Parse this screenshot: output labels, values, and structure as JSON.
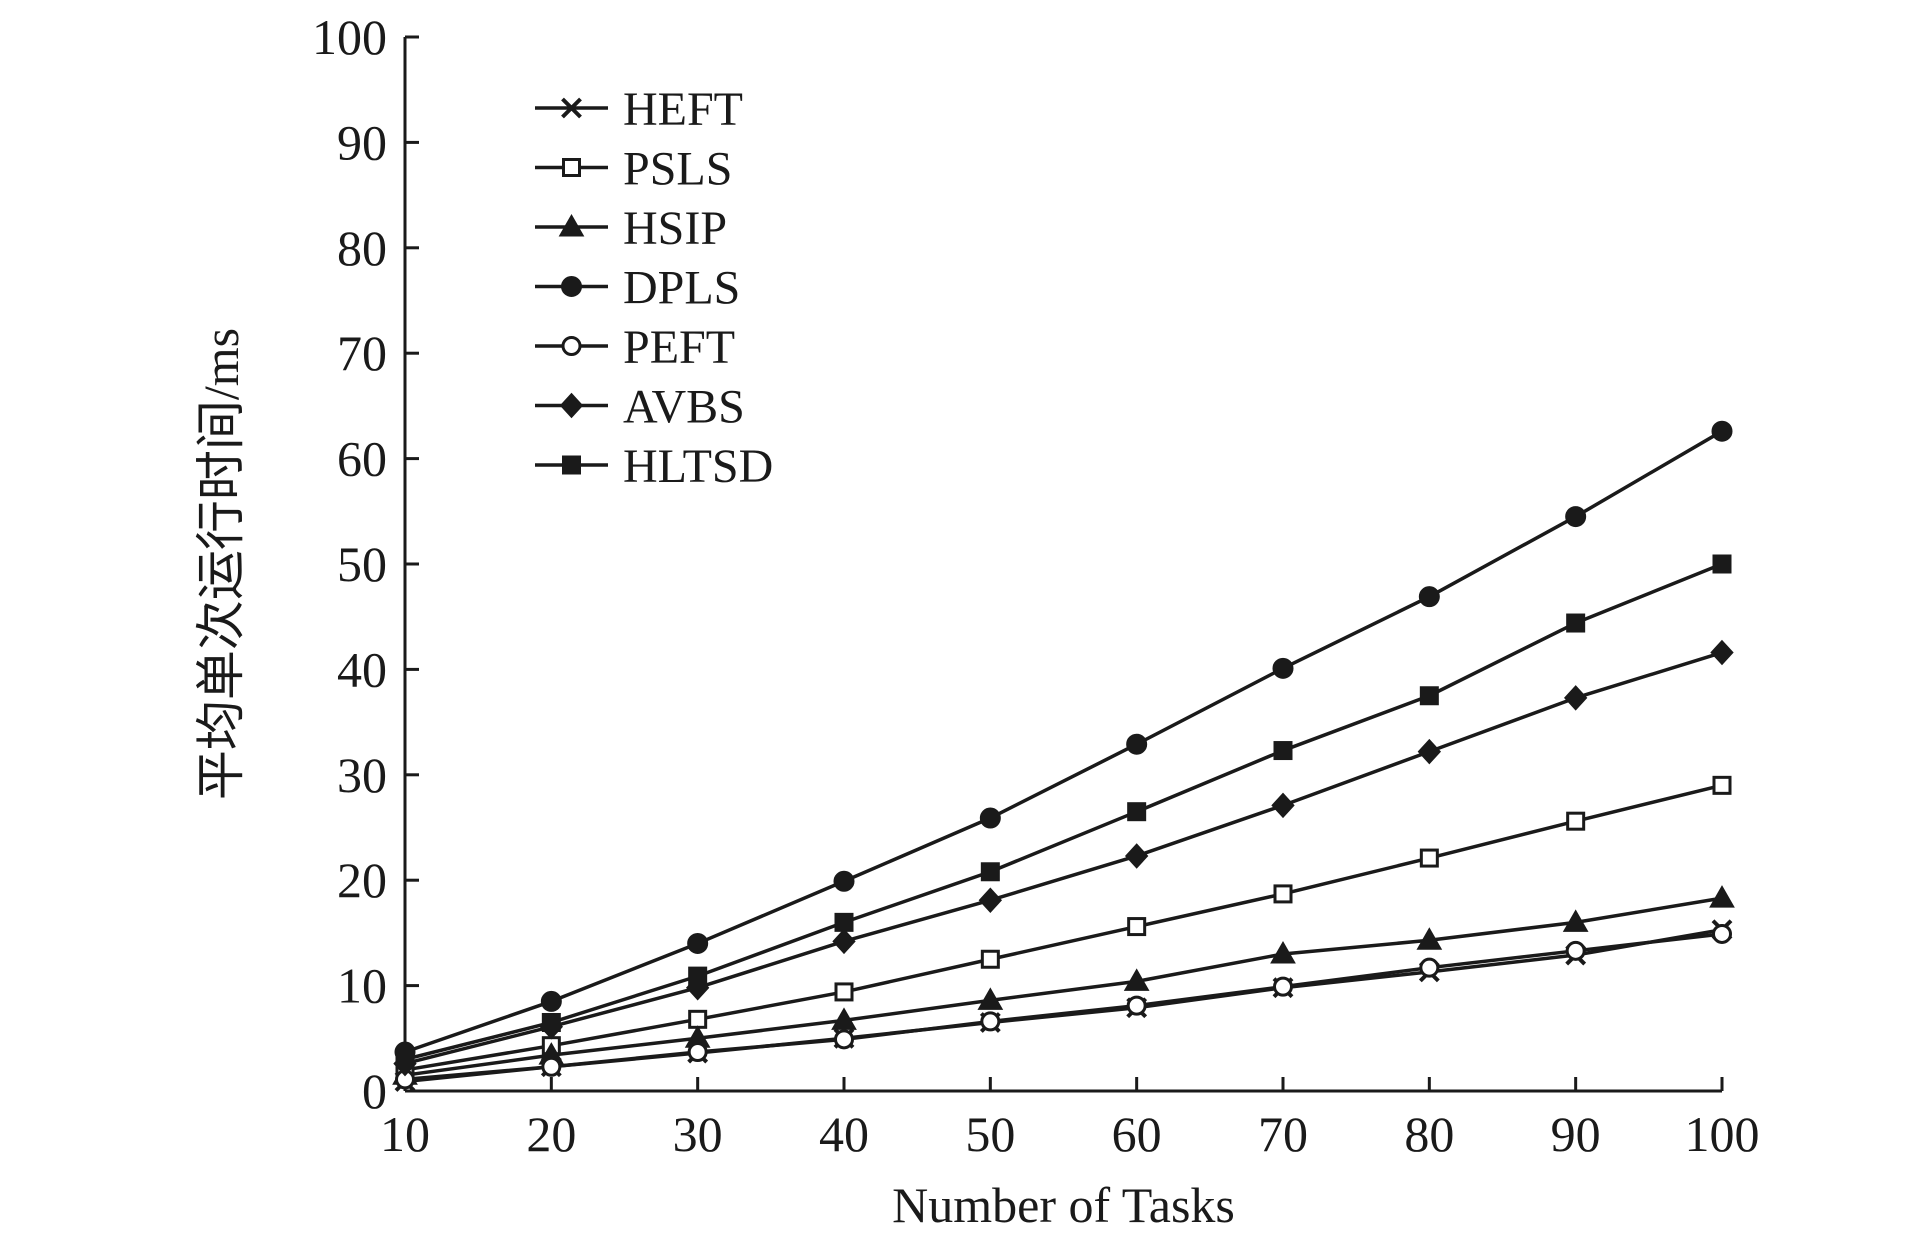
{
  "chart_data": {
    "type": "line",
    "xlabel": "Number of Tasks",
    "ylabel": "平均单次运行时间/ms",
    "x": [
      10,
      20,
      30,
      40,
      50,
      60,
      70,
      80,
      90,
      100
    ],
    "xlim": [
      10,
      100
    ],
    "ylim": [
      0,
      100
    ],
    "xticks": [
      "10",
      "20",
      "30",
      "40",
      "50",
      "60",
      "70",
      "80",
      "90",
      "100"
    ],
    "yticks": [
      "0",
      "10",
      "20",
      "30",
      "40",
      "50",
      "60",
      "70",
      "80",
      "90",
      "100"
    ],
    "grid": false,
    "legend_position": "top-left",
    "series": [
      {
        "name": "HEFT",
        "marker": "x-mark",
        "values": [
          0.9,
          2.3,
          3.6,
          5.0,
          6.5,
          7.9,
          9.8,
          11.3,
          12.9,
          15.3
        ]
      },
      {
        "name": "PSLS",
        "marker": "open-square",
        "values": [
          2.0,
          4.3,
          6.8,
          9.4,
          12.5,
          15.6,
          18.7,
          22.1,
          25.6,
          29.0
        ]
      },
      {
        "name": "HSIP",
        "marker": "filled-triangle",
        "values": [
          1.5,
          3.4,
          5.0,
          6.7,
          8.6,
          10.4,
          13.0,
          14.3,
          16.0,
          18.3
        ]
      },
      {
        "name": "DPLS",
        "marker": "filled-circle",
        "values": [
          3.7,
          8.5,
          14.0,
          19.9,
          25.9,
          32.9,
          40.1,
          46.9,
          54.5,
          62.6
        ]
      },
      {
        "name": "PEFT",
        "marker": "open-circle",
        "values": [
          1.1,
          2.3,
          3.7,
          4.9,
          6.6,
          8.1,
          9.9,
          11.7,
          13.3,
          14.9
        ]
      },
      {
        "name": "AVBS",
        "marker": "filled-diamond",
        "values": [
          2.6,
          6.1,
          9.8,
          14.2,
          18.1,
          22.3,
          27.1,
          32.2,
          37.3,
          41.6
        ]
      },
      {
        "name": "HLTSD",
        "marker": "filled-square",
        "values": [
          3.0,
          6.5,
          10.9,
          16.0,
          20.8,
          26.5,
          32.3,
          37.5,
          44.4,
          50.0
        ]
      }
    ],
    "line_color": "#1a1a1a"
  }
}
